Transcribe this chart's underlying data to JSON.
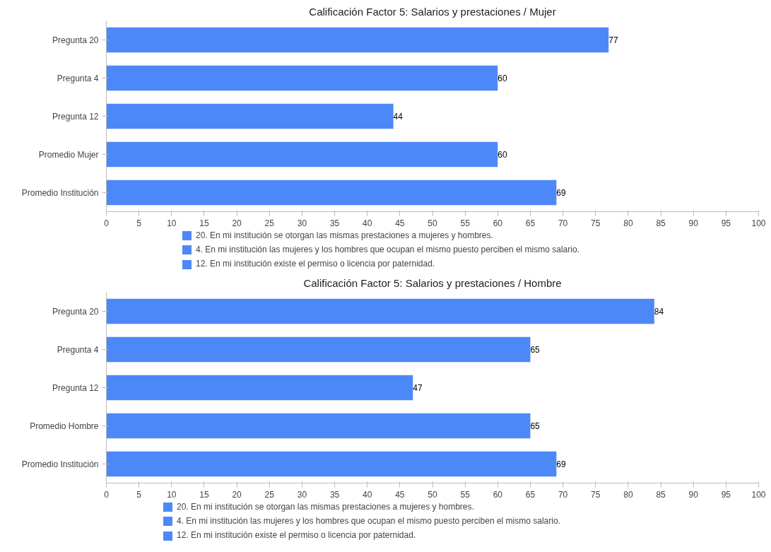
{
  "chart_data": [
    {
      "type": "bar",
      "orientation": "horizontal",
      "title": "Calificación Factor 5: Salarios y prestaciones / Mujer",
      "categories": [
        "Pregunta 20",
        "Pregunta 4",
        "Pregunta 12",
        "Promedio Mujer",
        "Promedio Institución"
      ],
      "values": [
        77,
        60,
        44,
        60,
        69
      ],
      "color": "#4d88f9",
      "data_labels": true,
      "xlim": [
        0,
        100
      ],
      "xticks": [
        0,
        5,
        10,
        15,
        20,
        25,
        30,
        35,
        40,
        45,
        50,
        55,
        60,
        65,
        70,
        75,
        80,
        85,
        90,
        95,
        100
      ],
      "annotations": [
        "20. En mi institución se otorgan las mismas prestaciones a mujeres y hombres.",
        "4. En mi institución las mujeres y los hombres que ocupan el mismo puesto perciben el mismo salario.",
        "12. En mi institución existe el permiso o licencia por paternidad."
      ]
    },
    {
      "type": "bar",
      "orientation": "horizontal",
      "title": "Calificación Factor 5: Salarios y prestaciones / Hombre",
      "categories": [
        "Pregunta 20",
        "Pregunta 4",
        "Pregunta 12",
        "Promedio Hombre",
        "Promedio Institución"
      ],
      "values": [
        84,
        65,
        47,
        65,
        69
      ],
      "color": "#4d88f9",
      "data_labels": true,
      "xlim": [
        0,
        100
      ],
      "xticks": [
        0,
        5,
        10,
        15,
        20,
        25,
        30,
        35,
        40,
        45,
        50,
        55,
        60,
        65,
        70,
        75,
        80,
        85,
        90,
        95,
        100
      ],
      "annotations": [
        "20. En mi institución se otorgan las mismas prestaciones a mujeres y hombres.",
        "4. En mi institución las mujeres y los hombres que ocupan el mismo puesto perciben el mismo salario.",
        "12. En mi institución existe el permiso o licencia por paternidad."
      ]
    }
  ]
}
